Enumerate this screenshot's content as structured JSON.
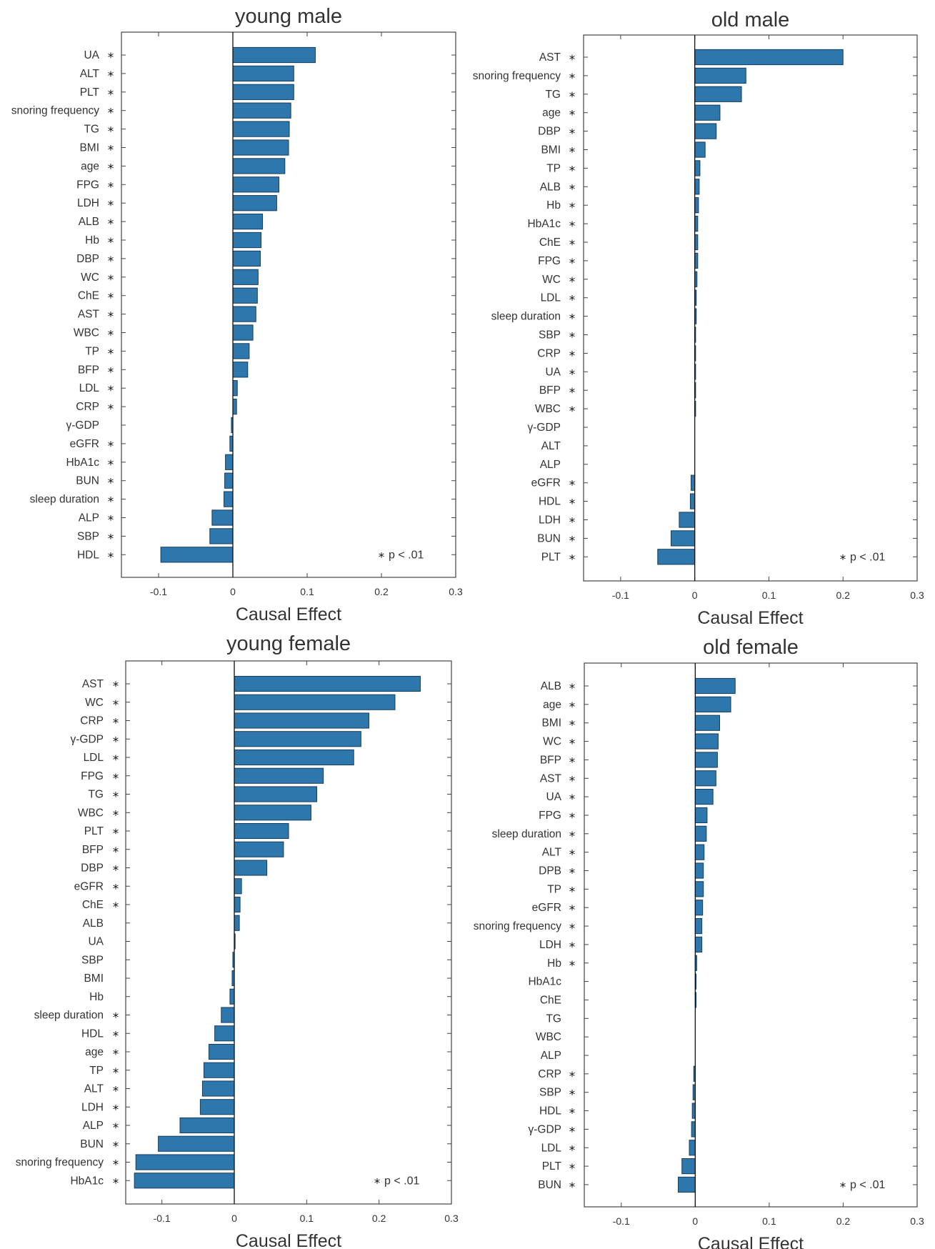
{
  "colors": {
    "bar": "#2e77ad",
    "bar_stroke": "#163c5c",
    "axis": "#444444"
  },
  "chart_data": [
    {
      "type": "bar",
      "orientation": "horizontal",
      "title": "young male",
      "xlabel": "Causal Effect",
      "xlim": [
        -0.15,
        0.3
      ],
      "xticks": [
        -0.1,
        0,
        0.1,
        0.2,
        0.3
      ],
      "xtick_labels": [
        "-0.1",
        "0",
        "0.1",
        "0.2",
        "0.3"
      ],
      "legend": "p < .01",
      "legend_symbol": "*",
      "legend_position": "bottom-right",
      "categories": [
        "UA",
        "ALT",
        "PLT",
        "snoring frequency",
        "TG",
        "BMI",
        "age",
        "FPG",
        "LDH",
        "ALB",
        "Hb",
        "DBP",
        "WC",
        "ChE",
        "AST",
        "WBC",
        "TP",
        "BFP",
        "LDL",
        "CRP",
        "γ-GDP",
        "eGFR",
        "HbA1c",
        "BUN",
        "sleep duration",
        "ALP",
        "SBP",
        "HDL"
      ],
      "values": [
        0.111,
        0.082,
        0.082,
        0.078,
        0.076,
        0.075,
        0.07,
        0.062,
        0.059,
        0.04,
        0.038,
        0.037,
        0.034,
        0.033,
        0.031,
        0.027,
        0.022,
        0.02,
        0.006,
        0.005,
        -0.002,
        -0.004,
        -0.01,
        -0.011,
        -0.012,
        -0.028,
        -0.031,
        -0.097
      ],
      "significant": [
        true,
        true,
        true,
        true,
        true,
        true,
        true,
        true,
        true,
        true,
        true,
        true,
        true,
        true,
        true,
        true,
        true,
        true,
        true,
        true,
        false,
        true,
        true,
        true,
        true,
        true,
        true,
        true
      ]
    },
    {
      "type": "bar",
      "orientation": "horizontal",
      "title": "old male",
      "xlabel": "Causal Effect",
      "xlim": [
        -0.15,
        0.3
      ],
      "xticks": [
        -0.1,
        0,
        0.1,
        0.2,
        0.3
      ],
      "xtick_labels": [
        "-0.1",
        "0",
        "0.1",
        "0.2",
        "0.3"
      ],
      "legend": "p < .01",
      "legend_symbol": "*",
      "legend_position": "bottom-right",
      "categories": [
        "AST",
        "snoring frequency",
        "TG",
        "age",
        "DBP",
        "BMI",
        "TP",
        "ALB",
        "Hb",
        "HbA1c",
        "ChE",
        "FPG",
        "WC",
        "LDL",
        "sleep duration",
        "SBP",
        "CRP",
        "UA",
        "BFP",
        "WBC",
        "γ-GDP",
        "ALT",
        "ALP",
        "eGFR",
        "HDL",
        "LDH",
        "BUN",
        "PLT"
      ],
      "values": [
        0.2,
        0.069,
        0.063,
        0.034,
        0.029,
        0.014,
        0.007,
        0.006,
        0.005,
        0.004,
        0.004,
        0.004,
        0.003,
        0.002,
        0.002,
        0.001,
        0.001,
        0.001,
        0.001,
        0.001,
        0.0,
        0.0,
        0.0,
        -0.005,
        -0.006,
        -0.021,
        -0.032,
        -0.05
      ],
      "significant": [
        true,
        true,
        true,
        true,
        true,
        true,
        true,
        true,
        true,
        true,
        true,
        true,
        true,
        true,
        true,
        true,
        true,
        true,
        true,
        true,
        false,
        false,
        false,
        true,
        true,
        true,
        true,
        true
      ]
    },
    {
      "type": "bar",
      "orientation": "horizontal",
      "title": "young female",
      "xlabel": "Causal Effect",
      "xlim": [
        -0.15,
        0.3
      ],
      "xticks": [
        -0.1,
        0,
        0.1,
        0.2,
        0.3
      ],
      "xtick_labels": [
        "-0.1",
        "0",
        "0.1",
        "0.2",
        "0.3"
      ],
      "legend": "p < .01",
      "legend_symbol": "*",
      "legend_position": "bottom-right",
      "categories": [
        "AST",
        "WC",
        "CRP",
        "γ-GDP",
        "LDL",
        "FPG",
        "TG",
        "WBC",
        "PLT",
        "BFP",
        "DBP",
        "eGFR",
        "ChE",
        "ALB",
        "UA",
        "SBP",
        "BMI",
        "Hb",
        "sleep duration",
        "HDL",
        "age",
        "TP",
        "ALT",
        "LDH",
        "ALP",
        "BUN",
        "snoring frequency",
        "HbA1c"
      ],
      "values": [
        0.257,
        0.222,
        0.186,
        0.175,
        0.165,
        0.123,
        0.114,
        0.106,
        0.075,
        0.068,
        0.045,
        0.01,
        0.008,
        0.007,
        0.001,
        -0.002,
        -0.003,
        -0.006,
        -0.018,
        -0.027,
        -0.035,
        -0.042,
        -0.044,
        -0.047,
        -0.075,
        -0.105,
        -0.136,
        -0.138
      ],
      "significant": [
        true,
        true,
        true,
        true,
        true,
        true,
        true,
        true,
        true,
        true,
        true,
        true,
        true,
        false,
        false,
        false,
        false,
        false,
        true,
        true,
        true,
        true,
        true,
        true,
        true,
        true,
        true,
        true
      ]
    },
    {
      "type": "bar",
      "orientation": "horizontal",
      "title": "old female",
      "xlabel": "Causal Effect",
      "xlim": [
        -0.15,
        0.3
      ],
      "xticks": [
        -0.1,
        0,
        0.1,
        0.2,
        0.3
      ],
      "xtick_labels": [
        "-0.1",
        "0",
        "0.1",
        "0.2",
        "0.3"
      ],
      "legend": "p < .01",
      "legend_symbol": "*",
      "legend_position": "bottom-right",
      "categories": [
        "ALB",
        "age",
        "BMI",
        "WC",
        "BFP",
        "AST",
        "UA",
        "FPG",
        "sleep duration",
        "ALT",
        "DPB",
        "TP",
        "eGFR",
        "snoring frequency",
        "LDH",
        "Hb",
        "HbA1c",
        "ChE",
        "TG",
        "WBC",
        "ALP",
        "CRP",
        "SBP",
        "HDL",
        "γ-GDP",
        "LDL",
        "PLT",
        "BUN"
      ],
      "values": [
        0.054,
        0.048,
        0.033,
        0.031,
        0.03,
        0.028,
        0.024,
        0.016,
        0.015,
        0.012,
        0.011,
        0.011,
        0.01,
        0.009,
        0.009,
        0.002,
        0.001,
        0.001,
        0.0,
        0.0,
        0.0,
        -0.002,
        -0.003,
        -0.004,
        -0.005,
        -0.008,
        -0.018,
        -0.023
      ],
      "significant": [
        true,
        true,
        true,
        true,
        true,
        true,
        true,
        true,
        true,
        true,
        true,
        true,
        true,
        true,
        true,
        true,
        false,
        false,
        false,
        false,
        false,
        true,
        true,
        true,
        true,
        true,
        true,
        true
      ]
    }
  ]
}
